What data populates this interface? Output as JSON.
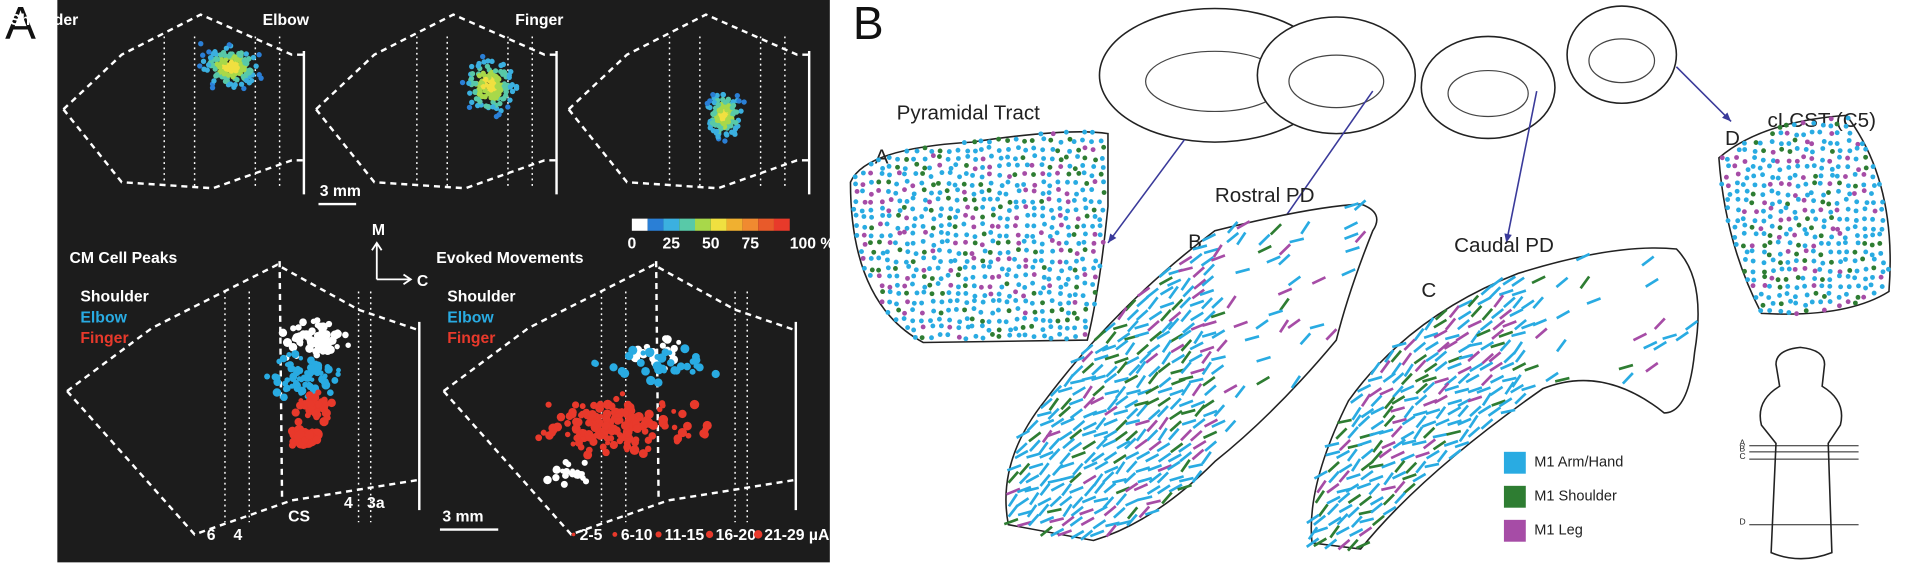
{
  "panel_a": {
    "label": "A",
    "maps": [
      {
        "title": "Shoulder"
      },
      {
        "title": "Elbow"
      },
      {
        "title": "Finger"
      }
    ],
    "scale_bar_top": "3 mm",
    "axes": {
      "m": "M",
      "c": "C"
    },
    "colorbar": {
      "labels": [
        "0",
        "25",
        "50",
        "75",
        "100 %"
      ]
    },
    "cm_cell_peaks": {
      "title": "CM Cell Peaks",
      "legend": [
        "Shoulder",
        "Elbow",
        "Finger"
      ],
      "landmarks": [
        "6",
        "4",
        "CS",
        "4",
        "3a"
      ]
    },
    "evoked_movements": {
      "title": "Evoked Movements",
      "legend": [
        "Shoulder",
        "Elbow",
        "Finger"
      ],
      "scale_bar": "3 mm",
      "size_legend": [
        "2-5",
        "6-10",
        "11-15",
        "16-20",
        "21-29 µA"
      ]
    }
  },
  "panel_b": {
    "label": "B",
    "sections": [
      {
        "title": "Pyramidal Tract",
        "letter": "A"
      },
      {
        "title": "Rostral PD",
        "letter": "B"
      },
      {
        "title": "Caudal PD",
        "letter": "C"
      },
      {
        "title": "cLCST (C5)",
        "letter": "D"
      }
    ],
    "legend": [
      "M1 Arm/Hand",
      "M1 Shoulder",
      "M1 Leg"
    ],
    "inset_levels": [
      "A",
      "B",
      "C",
      "D"
    ]
  }
}
